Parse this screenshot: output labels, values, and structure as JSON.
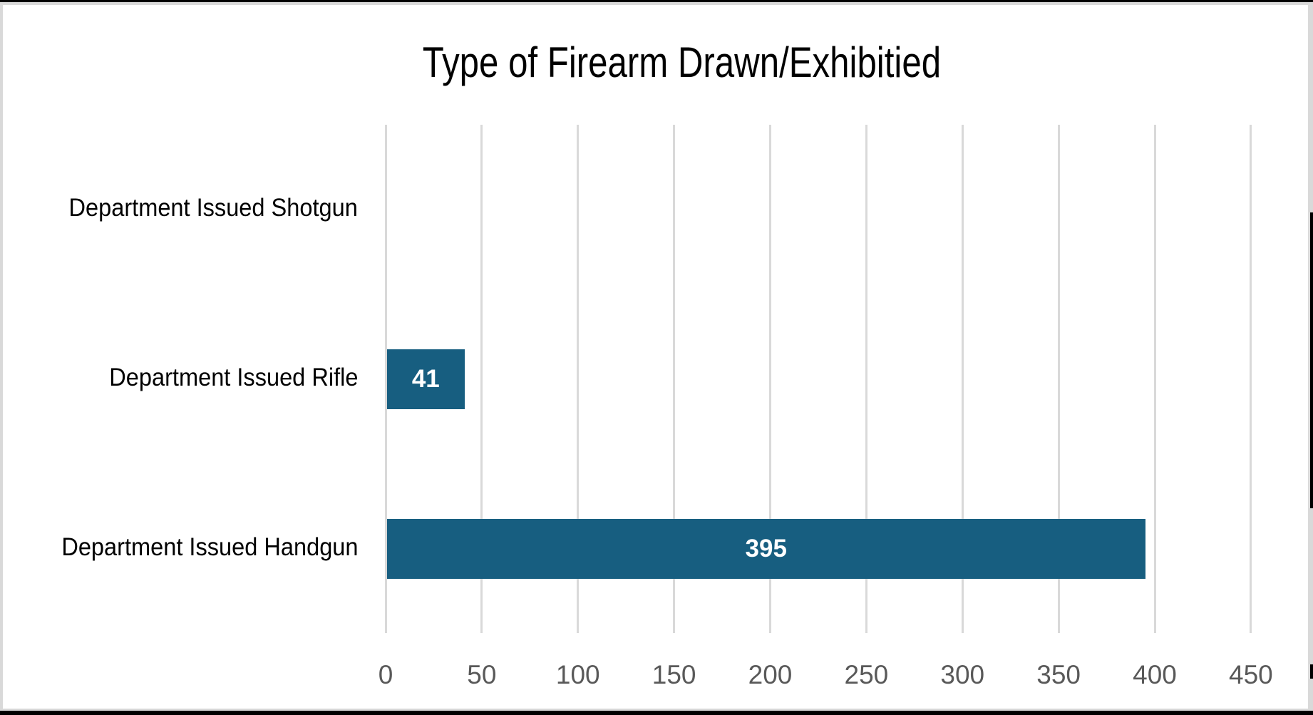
{
  "chart_data": {
    "type": "bar",
    "orientation": "horizontal",
    "title": "Type of Firearm Drawn/Exhibitied",
    "categories": [
      "Department Issued Shotgun",
      "Department Issued Rifle",
      "Department Issued Handgun"
    ],
    "values": [
      0,
      41,
      395
    ],
    "data_labels": [
      "",
      "41",
      "395"
    ],
    "xlabel": "",
    "ylabel": "",
    "xlim": [
      0,
      450
    ],
    "x_ticks": [
      "0",
      "50",
      "100",
      "150",
      "200",
      "250",
      "300",
      "350",
      "400",
      "450"
    ],
    "grid": "vertical",
    "legend": "none",
    "bar_color": "#175e80"
  }
}
